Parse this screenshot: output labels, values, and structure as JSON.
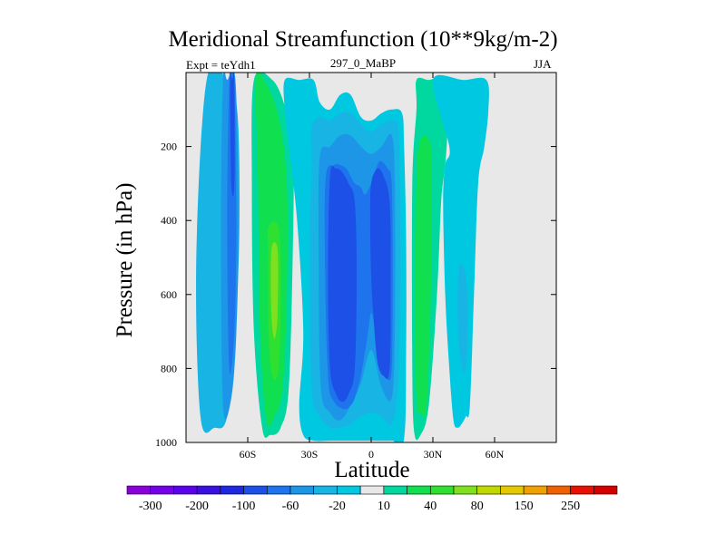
{
  "chart_data": {
    "type": "heatmap",
    "title": "Meridional Streamfunction (10**9kg/m-2)",
    "subtitle": "297_0_MaBP",
    "left_label": "Expt = teYdh1",
    "right_label": "JJA",
    "xlabel": "Latitude",
    "ylabel": "Pressure (in hPa)",
    "xlim": [
      -90,
      90
    ],
    "ylim": [
      1000,
      0
    ],
    "x_ticks": [
      {
        "value": -60,
        "label": "60S"
      },
      {
        "value": -30,
        "label": "30S"
      },
      {
        "value": 0,
        "label": "0"
      },
      {
        "value": 30,
        "label": "30N"
      },
      {
        "value": 60,
        "label": "60N"
      }
    ],
    "y_ticks": [
      {
        "value": 200,
        "label": "200"
      },
      {
        "value": 400,
        "label": "400"
      },
      {
        "value": 600,
        "label": "600"
      },
      {
        "value": 800,
        "label": "800"
      },
      {
        "value": 1000,
        "label": "1000"
      }
    ],
    "colorbar": {
      "levels": [
        -300,
        -250,
        -200,
        -150,
        -100,
        -80,
        -60,
        -40,
        -20,
        -10,
        10,
        20,
        40,
        60,
        80,
        100,
        150,
        200,
        250,
        300
      ],
      "labels": [
        "-300",
        "-200",
        "-100",
        "-60",
        "-20",
        "10",
        "40",
        "80",
        "150",
        "250"
      ],
      "colors": [
        "#8a00d9",
        "#7300e6",
        "#5a00ea",
        "#3a10e0",
        "#1d28e0",
        "#1d50e6",
        "#1e74ec",
        "#1e96e8",
        "#18b4e4",
        "#00c8e0",
        "#e8e8e8",
        "#00d8a0",
        "#10e050",
        "#30e030",
        "#80e020",
        "#c0d800",
        "#e6c800",
        "#f0a000",
        "#f06000",
        "#e81000",
        "#d40000"
      ]
    },
    "contours": [
      {
        "name": "cell-a-l1",
        "level": -20,
        "color": "#18b4e4",
        "lat": [
          -80,
          -70,
          -65,
          -64,
          -66,
          -70,
          -76,
          -83,
          -85
        ],
        "p": [
          20,
          20,
          110,
          400,
          700,
          930,
          960,
          930,
          500
        ]
      },
      {
        "name": "cell-a-l2",
        "level": -40,
        "color": "#1e96e8",
        "lat": [
          -70,
          -66,
          -64.5,
          -65.5,
          -68,
          -72,
          -73,
          -72
        ],
        "p": [
          20,
          20,
          400,
          700,
          880,
          900,
          400,
          20
        ]
      },
      {
        "name": "cell-a-l3",
        "level": -60,
        "color": "#1e74ec",
        "lat": [
          -68,
          -66.5,
          -65.5,
          -66.5,
          -69,
          -70,
          -69
        ],
        "p": [
          20,
          20,
          400,
          700,
          800,
          400,
          20
        ]
      },
      {
        "name": "cell-a-l4",
        "level": -80,
        "color": "#1d50e6",
        "lat": [
          -67.5,
          -66.5,
          -66.5,
          -68,
          -68.5
        ],
        "p": [
          20,
          20,
          300,
          300,
          20
        ]
      },
      {
        "name": "cell-b-l1",
        "level": 10,
        "color": "#00d8a0",
        "lat": [
          -57,
          -48,
          -42,
          -38,
          -38,
          -40,
          -44,
          -49,
          -53,
          -57,
          -58
        ],
        "p": [
          20,
          20,
          90,
          200,
          450,
          850,
          960,
          980,
          960,
          700,
          300
        ]
      },
      {
        "name": "cell-b-l2",
        "level": 20,
        "color": "#10e050",
        "lat": [
          -56,
          -52,
          -45,
          -41,
          -41,
          -43,
          -47,
          -51,
          -54,
          -55
        ],
        "p": [
          20,
          20,
          120,
          300,
          600,
          850,
          930,
          940,
          700,
          300
        ]
      },
      {
        "name": "cell-b-l3",
        "level": 40,
        "color": "#30e030",
        "lat": [
          -50,
          -45,
          -44,
          -45,
          -48,
          -50,
          -50
        ],
        "p": [
          420,
          420,
          600,
          800,
          820,
          700,
          500
        ]
      },
      {
        "name": "cell-b-l4",
        "level": 60,
        "color": "#80e020",
        "lat": [
          -48.5,
          -45.5,
          -45.5,
          -47,
          -48.5
        ],
        "p": [
          480,
          480,
          650,
          720,
          650
        ]
      },
      {
        "name": "cell-c-l1",
        "level": -10,
        "color": "#00c8e0",
        "lat": [
          -42,
          -35,
          -28,
          -25,
          -20,
          -15,
          -10,
          -5,
          0,
          5,
          10,
          15,
          16,
          17,
          17,
          16,
          10,
          0,
          -10,
          -20,
          -28,
          -33,
          -35,
          -33,
          -36,
          -40,
          -42
        ],
        "p": [
          20,
          20,
          20,
          80,
          100,
          60,
          60,
          120,
          130,
          110,
          100,
          110,
          200,
          450,
          750,
          990,
          995,
          995,
          995,
          995,
          995,
          980,
          900,
          700,
          400,
          200,
          100
        ]
      },
      {
        "name": "cell-c-l2",
        "level": -20,
        "color": "#18b4e4",
        "lat": [
          -29,
          -25,
          -20,
          -15,
          -10,
          -5,
          0,
          5,
          10,
          13,
          14,
          14,
          13,
          10,
          5,
          0,
          -5,
          -10,
          -15,
          -20,
          -25,
          -29,
          -30,
          -29
        ],
        "p": [
          150,
          120,
          130,
          110,
          110,
          140,
          160,
          140,
          130,
          150,
          300,
          600,
          850,
          950,
          930,
          920,
          930,
          950,
          960,
          960,
          930,
          850,
          500,
          250
        ]
      },
      {
        "name": "cell-c-l3",
        "level": -40,
        "color": "#1e96e8",
        "lat": [
          -25,
          -20,
          -15,
          -10,
          -5,
          0,
          5,
          10,
          11.5,
          11.5,
          10,
          5,
          0,
          -5,
          -10,
          -15,
          -20,
          -24.5,
          -25.5
        ],
        "p": [
          230,
          200,
          170,
          170,
          200,
          220,
          200,
          170,
          300,
          700,
          880,
          850,
          750,
          840,
          900,
          940,
          920,
          850,
          500
        ]
      },
      {
        "name": "cell-c-l4",
        "level": -60,
        "color": "#1e74ec",
        "lat": [
          -22,
          -18,
          -15,
          -12,
          -10,
          -8,
          -5,
          -3,
          0,
          3,
          5,
          8,
          10,
          10.5,
          10,
          8,
          5,
          2,
          0,
          -2,
          -5,
          -8,
          -10,
          -13,
          -18,
          -21,
          -22.5
        ],
        "p": [
          280,
          250,
          250,
          260,
          280,
          300,
          310,
          330,
          300,
          250,
          240,
          260,
          300,
          550,
          800,
          830,
          800,
          700,
          650,
          720,
          820,
          880,
          900,
          910,
          890,
          820,
          500
        ]
      },
      {
        "name": "cell-c-l5-s",
        "level": -80,
        "color": "#1d50e6",
        "lat": [
          -20,
          -17,
          -14,
          -11,
          -8,
          -7,
          -8,
          -11,
          -14,
          -17,
          -20,
          -21
        ],
        "p": [
          280,
          260,
          270,
          300,
          350,
          550,
          800,
          870,
          890,
          870,
          800,
          550
        ]
      },
      {
        "name": "cell-c-l5-n",
        "level": -80,
        "color": "#1d50e6",
        "lat": [
          0,
          3,
          6,
          9,
          9.5,
          9,
          6,
          3,
          1,
          0,
          -0.5
        ],
        "p": [
          300,
          260,
          280,
          350,
          550,
          800,
          820,
          780,
          650,
          550,
          400
        ]
      },
      {
        "name": "cell-d-l1",
        "level": 10,
        "color": "#00d8a0",
        "lat": [
          22,
          28,
          36,
          37,
          36,
          34,
          32,
          28,
          24,
          21,
          20,
          20,
          22
        ],
        "p": [
          20,
          20,
          20,
          150,
          250,
          350,
          600,
          900,
          980,
          975,
          800,
          300,
          100
        ]
      },
      {
        "name": "cell-d-l2",
        "level": 20,
        "color": "#10e050",
        "lat": [
          23,
          26,
          29,
          29.5,
          29,
          27,
          24,
          22,
          21.5,
          22
        ],
        "p": [
          200,
          170,
          200,
          300,
          600,
          900,
          920,
          880,
          600,
          300
        ]
      },
      {
        "name": "cell-e-l1",
        "level": -10,
        "color": "#00c8e0",
        "lat": [
          30,
          45,
          56,
          57,
          55,
          52,
          50,
          48,
          46,
          44,
          42,
          40,
          38,
          36,
          35,
          36,
          38
        ],
        "p": [
          20,
          20,
          20,
          100,
          200,
          300,
          600,
          900,
          930,
          950,
          960,
          940,
          800,
          600,
          350,
          250,
          200
        ]
      },
      {
        "name": "cell-e-l2",
        "level": -20,
        "color": "#18b4e4",
        "lat": [
          43,
          46,
          47,
          46,
          43.5,
          42
        ],
        "p": [
          520,
          550,
          650,
          800,
          780,
          650
        ]
      }
    ]
  }
}
